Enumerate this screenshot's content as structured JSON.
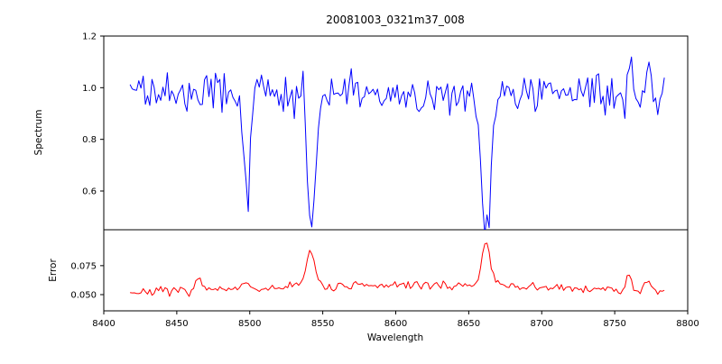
{
  "figure": {
    "background": "#ffffff"
  },
  "chart_data": {
    "type": "line",
    "title": "20081003_0321m37_008",
    "xlabel": "Wavelength",
    "x_axis": {
      "range": [
        8400,
        8800
      ],
      "data_start": 8418,
      "data_end": 8785,
      "ticks": [
        8400,
        8450,
        8500,
        8550,
        8600,
        8650,
        8700,
        8750,
        8800
      ],
      "tick_labels": [
        "8400",
        "8450",
        "8500",
        "8550",
        "8600",
        "8650",
        "8700",
        "8750",
        "8800"
      ]
    },
    "panels": [
      {
        "name": "spectrum",
        "ylabel": "Spectrum",
        "ylim": [
          0.45,
          1.2
        ],
        "yticks": [
          0.6,
          0.8,
          1.0,
          1.2
        ],
        "ytick_labels": [
          "0.6",
          "0.8",
          "1.0",
          "1.2"
        ],
        "line_color": "#0000ff",
        "baseline": 0.97,
        "noise_std": 0.035,
        "seed": 42,
        "absorption_lines": [
          {
            "center": 8498,
            "depth": 0.4,
            "width": 2.2
          },
          {
            "center": 8542,
            "depth": 0.5,
            "width": 3.0
          },
          {
            "center": 8662,
            "depth": 0.55,
            "width": 3.2
          }
        ],
        "spikes": [
          {
            "center": 8425,
            "height": 0.1,
            "width": 1.5
          },
          {
            "center": 8537,
            "height": 0.17,
            "width": 1.5
          },
          {
            "center": 8761,
            "height": 0.16,
            "width": 1.5
          },
          {
            "center": 8774,
            "height": 0.15,
            "width": 1.5
          }
        ]
      },
      {
        "name": "error",
        "ylabel": "Error",
        "ylim": [
          0.036,
          0.106
        ],
        "yticks": [
          0.05,
          0.075
        ],
        "ytick_labels": [
          "0.050",
          "0.075"
        ],
        "line_color": "#ff0000",
        "baseline": 0.052,
        "broad_bump": {
          "center": 8620,
          "height": 0.006,
          "width": 90
        },
        "noise_std": 0.0018,
        "seed": 7,
        "peaks": [
          {
            "center": 8465,
            "height": 0.01,
            "width": 2.0
          },
          {
            "center": 8497,
            "height": 0.008,
            "width": 2.5
          },
          {
            "center": 8530,
            "height": 0.005,
            "width": 3.0
          },
          {
            "center": 8542,
            "height": 0.03,
            "width": 3.0
          },
          {
            "center": 8662,
            "height": 0.038,
            "width": 3.0
          },
          {
            "center": 8760,
            "height": 0.013,
            "width": 1.8
          },
          {
            "center": 8772,
            "height": 0.009,
            "width": 2.2
          }
        ]
      }
    ]
  }
}
